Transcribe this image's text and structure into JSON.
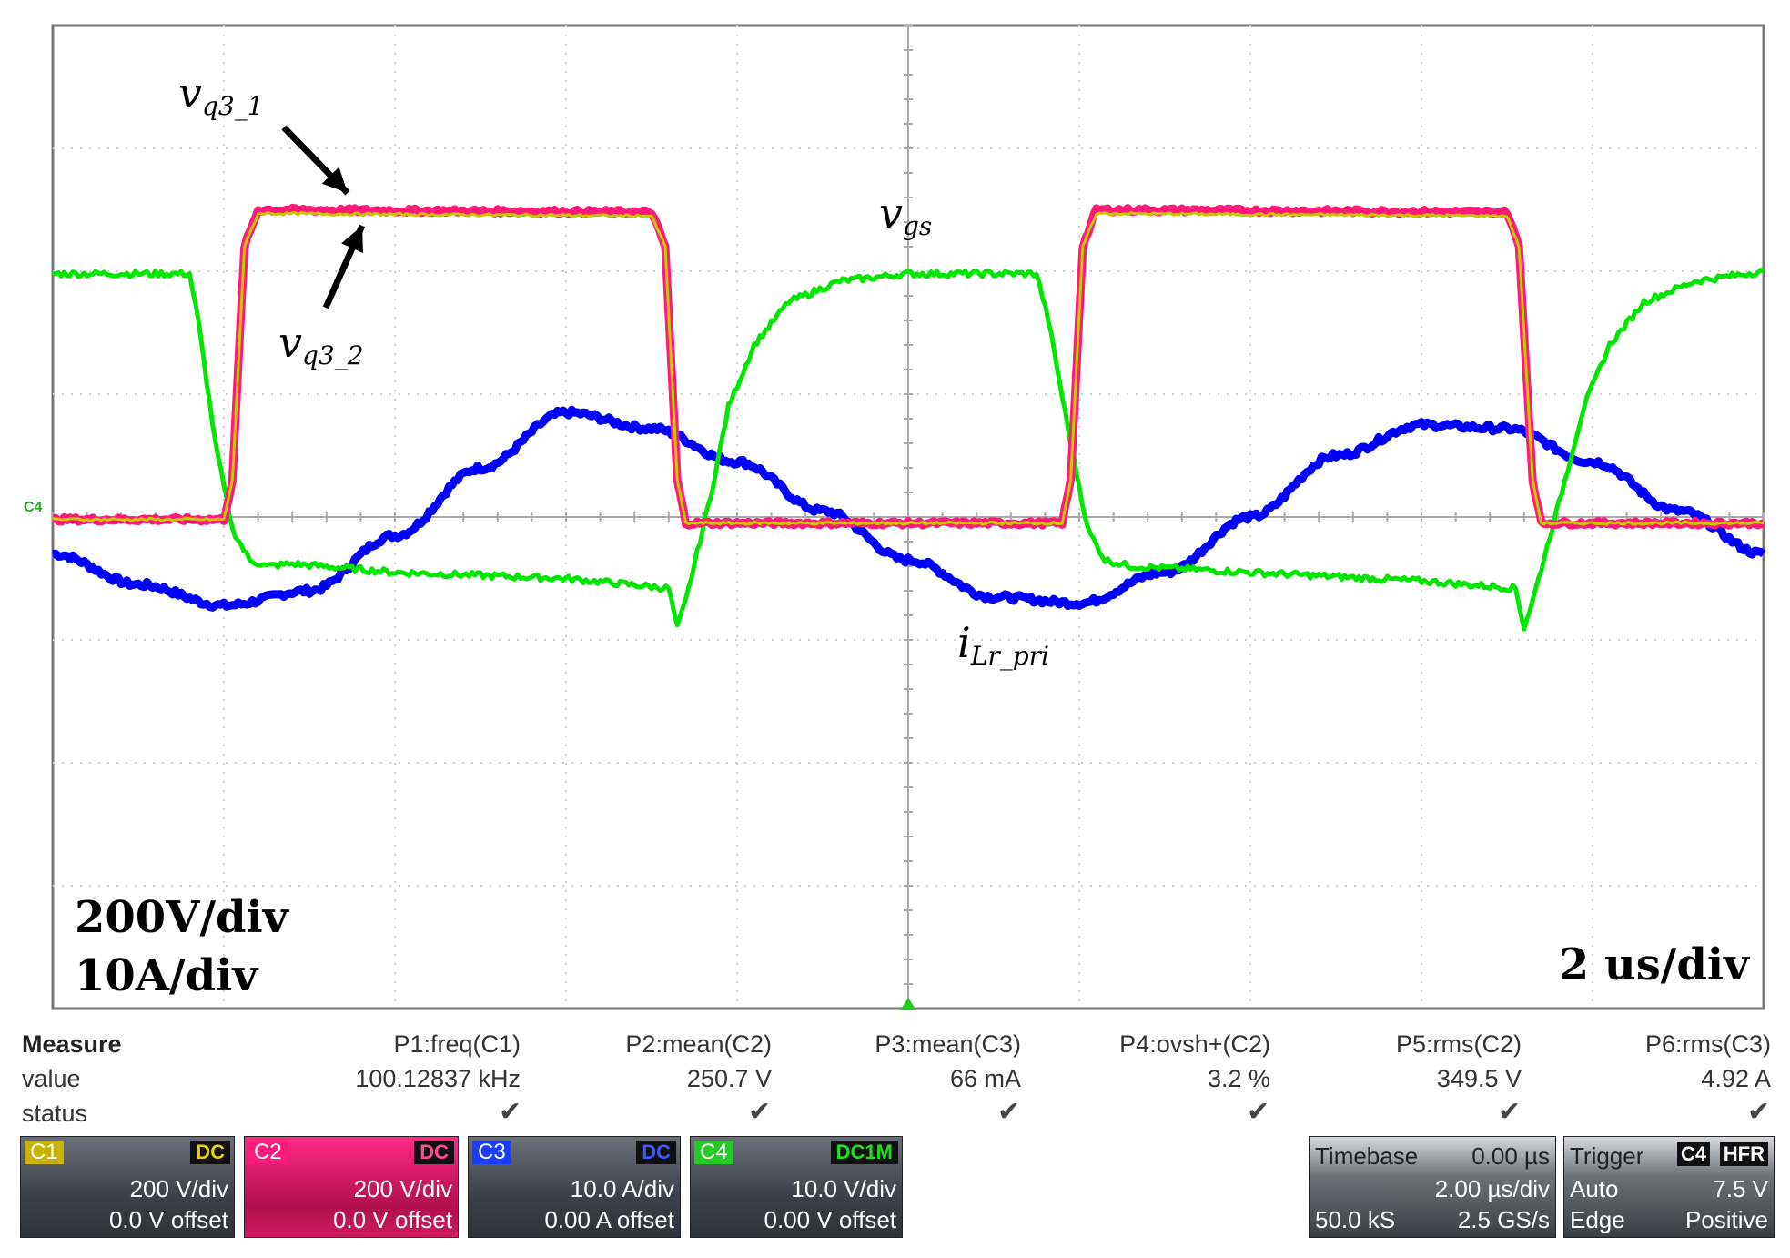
{
  "chart_data": {
    "type": "line",
    "title": "",
    "xlabel": "",
    "ylabel": "",
    "x_divisions": 10,
    "y_divisions": 8,
    "grid": true,
    "x_unit_per_div": "2 us",
    "xlim_div": [
      0,
      10
    ],
    "ylim_div": [
      -4,
      4
    ],
    "series": [
      {
        "name": "vq3_1",
        "channel": "C2",
        "color": "#ff1a7a",
        "x": [
          0,
          1.0,
          1.05,
          1.12,
          1.2,
          3.5,
          3.58,
          3.65,
          3.7,
          5.9,
          5.95,
          6.02,
          6.1,
          8.5,
          8.57,
          8.65,
          8.7,
          10
        ],
        "y": [
          -0.02,
          -0.02,
          0.3,
          2.2,
          2.5,
          2.48,
          2.2,
          0.3,
          -0.05,
          -0.05,
          0.3,
          2.2,
          2.5,
          2.48,
          2.2,
          0.3,
          -0.05,
          -0.05
        ]
      },
      {
        "name": "vq3_2",
        "channel": "C1",
        "color": "#c8c800",
        "x": [
          0,
          1.0,
          1.05,
          1.12,
          1.2,
          3.5,
          3.58,
          3.65,
          3.7,
          5.9,
          5.95,
          6.02,
          6.1,
          8.5,
          8.57,
          8.65,
          8.7,
          10
        ],
        "y": [
          -0.02,
          -0.02,
          0.3,
          2.2,
          2.47,
          2.45,
          2.2,
          0.3,
          -0.05,
          -0.05,
          0.3,
          2.2,
          2.47,
          2.45,
          2.2,
          0.3,
          -0.05,
          -0.05
        ]
      },
      {
        "name": "vgs",
        "channel": "C4",
        "color": "#00e600",
        "x": [
          0,
          0.8,
          0.85,
          0.95,
          1.05,
          1.15,
          1.25,
          1.4,
          2.0,
          3.0,
          3.6,
          3.65,
          3.7,
          3.85,
          3.95,
          4.1,
          4.3,
          4.6,
          5.0,
          5.3,
          5.75,
          5.82,
          5.95,
          6.05,
          6.15,
          6.3,
          7.0,
          8.0,
          8.55,
          8.6,
          8.65,
          8.82,
          8.95,
          9.1,
          9.3,
          9.6,
          10
        ],
        "y": [
          1.98,
          1.98,
          1.6,
          0.6,
          -0.1,
          -0.35,
          -0.4,
          -0.38,
          -0.45,
          -0.5,
          -0.58,
          -0.9,
          -0.68,
          0.2,
          0.9,
          1.4,
          1.75,
          1.92,
          1.98,
          1.98,
          1.98,
          1.6,
          0.6,
          -0.1,
          -0.35,
          -0.4,
          -0.45,
          -0.52,
          -0.58,
          -0.9,
          -0.68,
          0.2,
          0.9,
          1.4,
          1.75,
          1.92,
          2.0
        ]
      },
      {
        "name": "iLr_pri",
        "channel": "C3",
        "color": "#0000ff",
        "x": [
          0,
          0.5,
          1.0,
          1.5,
          2.0,
          2.5,
          3.0,
          3.5,
          4.0,
          4.5,
          5.0,
          5.5,
          6.0,
          6.5,
          7.0,
          7.5,
          8.0,
          8.5,
          9.0,
          9.5,
          10
        ],
        "y": [
          -0.3,
          -0.55,
          -0.72,
          -0.6,
          -0.15,
          0.4,
          0.85,
          0.72,
          0.45,
          0.05,
          -0.35,
          -0.65,
          -0.7,
          -0.45,
          0.0,
          0.5,
          0.75,
          0.72,
          0.45,
          0.05,
          -0.3
        ]
      }
    ],
    "annotations": {
      "vq3_1": "v",
      "vq3_1_sub": "q3_1",
      "vq3_2": "v",
      "vq3_2_sub": "q3_2",
      "vgs": "v",
      "vgs_sub": "gs",
      "iLr": "i",
      "iLr_sub": "Lr_pri",
      "scale_v": "200V/div",
      "scale_i": "10A/div",
      "scale_t": "2 us/div",
      "zero_marker": "C4"
    }
  },
  "measure": {
    "header": "Measure",
    "row_value": "value",
    "row_status": "status",
    "columns": [
      {
        "param": "P1:freq(C1)",
        "value": "100.12837 kHz"
      },
      {
        "param": "P2:mean(C2)",
        "value": "250.7 V"
      },
      {
        "param": "P3:mean(C3)",
        "value": "66 mA"
      },
      {
        "param": "P4:ovsh+(C2)",
        "value": "3.2 %"
      },
      {
        "param": "P5:rms(C2)",
        "value": "349.5 V"
      },
      {
        "param": "P6:rms(C3)",
        "value": "4.92 A"
      }
    ]
  },
  "channels": [
    {
      "id": "C1",
      "coupling": "DC",
      "vdiv": "200 V/div",
      "offset": "0.0 V offset",
      "color": "#c8b400"
    },
    {
      "id": "C2",
      "coupling": "DC",
      "vdiv": "200 V/div",
      "offset": "0.0 V offset",
      "color": "#ff1a7a"
    },
    {
      "id": "C3",
      "coupling": "DC",
      "vdiv": "10.0 A/div",
      "offset": "0.00 A offset",
      "color": "#1a3cff"
    },
    {
      "id": "C4",
      "coupling": "DC1M",
      "vdiv": "10.0 V/div",
      "offset": "0.00 V offset",
      "color": "#22cc22"
    }
  ],
  "timebase": {
    "label": "Timebase",
    "delay": "0.00 µs",
    "tdiv": "2.00 µs/div",
    "samples": "50.0 kS",
    "rate": "2.5 GS/s"
  },
  "trigger": {
    "label": "Trigger",
    "source": "C4",
    "mode_tag": "HFR",
    "mode": "Auto",
    "level": "7.5 V",
    "type": "Edge",
    "slope": "Positive"
  }
}
